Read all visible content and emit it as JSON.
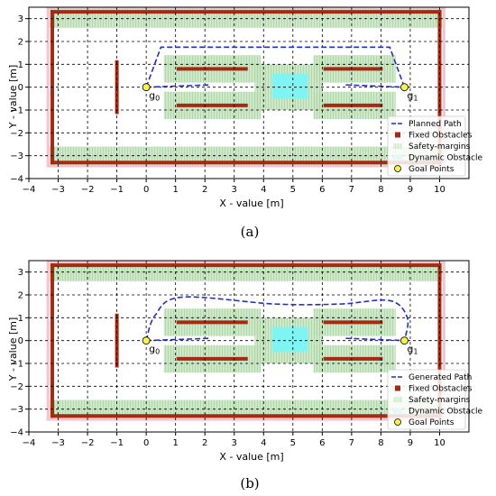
{
  "colors": {
    "margin": "#c9e6c4",
    "margin_stripe": "#a9d39f",
    "halo": "#f6c3cf",
    "obstacle": "#a52a13",
    "dynamic": "#7ff5f3",
    "path": "#1f2fd0",
    "goal": "#f5f542",
    "grid": "#000000"
  },
  "chart_data": [
    {
      "type": "scatter",
      "caption": "(a)",
      "xlabel": "X - value [m]",
      "ylabel": "Y - value [m]",
      "xlim": [
        -4,
        11
      ],
      "ylim": [
        -4,
        3.5
      ],
      "x_ticks": [
        -4,
        -3,
        -2,
        -1,
        0,
        1,
        2,
        3,
        4,
        5,
        6,
        7,
        8,
        9,
        10
      ],
      "y_ticks": [
        -4,
        -3,
        -2,
        -1,
        0,
        1,
        2,
        3
      ],
      "grid": true,
      "legend_position": "bottom-right",
      "legend": [
        "Planned Path",
        "Fixed Obstacles",
        "Safety-margins",
        "Dynamic Obstacle",
        "Goal Points"
      ],
      "path_style": "polyline",
      "path": [
        [
          0,
          0
        ],
        [
          0.5,
          1.75
        ],
        [
          8.3,
          1.75
        ],
        [
          8.8,
          0
        ]
      ],
      "path_inner": [
        [
          0,
          0
        ],
        [
          2.2,
          0.1
        ]
      ],
      "path_inner_right": [
        [
          6.8,
          0.1
        ],
        [
          8.8,
          0
        ]
      ],
      "goals": [
        {
          "label": "g",
          "sub": "0",
          "x": 0,
          "y": 0
        },
        {
          "label": "g",
          "sub": "1",
          "x": 8.8,
          "y": 0
        }
      ]
    },
    {
      "type": "scatter",
      "caption": "(b)",
      "xlabel": "X - value [m]",
      "ylabel": "Y - value [m]",
      "xlim": [
        -4,
        11
      ],
      "ylim": [
        -4,
        3.5
      ],
      "x_ticks": [
        -4,
        -3,
        -2,
        -1,
        0,
        1,
        2,
        3,
        4,
        5,
        6,
        7,
        8,
        9,
        10
      ],
      "y_ticks": [
        -4,
        -3,
        -2,
        -1,
        0,
        1,
        2,
        3
      ],
      "grid": true,
      "legend_position": "bottom-right",
      "legend": [
        "Generated Path",
        "Fixed Obstacles",
        "Safety-margins",
        "Dynamic Obstacle",
        "Goal Points"
      ],
      "path_style": "smooth",
      "path": [
        [
          0,
          0
        ],
        [
          0.3,
          1.1
        ],
        [
          1.2,
          1.9
        ],
        [
          4.4,
          1.6
        ],
        [
          6.6,
          1.6
        ],
        [
          8.3,
          1.75
        ],
        [
          8.9,
          1.0
        ],
        [
          8.8,
          0
        ]
      ],
      "path_inner": [
        [
          0,
          0
        ],
        [
          2.2,
          0.1
        ]
      ],
      "path_inner_right": [
        [
          6.8,
          0.1
        ],
        [
          8.8,
          0
        ]
      ],
      "goals": [
        {
          "label": "g",
          "sub": "0",
          "x": 0,
          "y": 0
        },
        {
          "label": "g",
          "sub": "1",
          "x": 8.8,
          "y": 0
        }
      ]
    }
  ],
  "environment": {
    "fixed_obstacles": [
      [
        [
          -3.2,
          3.3
        ],
        [
          10.0,
          3.3
        ]
      ],
      [
        [
          -3.2,
          -3.3
        ],
        [
          10.0,
          -3.3
        ]
      ],
      [
        [
          -3.2,
          -3.3
        ],
        [
          -3.2,
          3.3
        ]
      ],
      [
        [
          10.0,
          -3.3
        ],
        [
          10.0,
          3.3
        ]
      ],
      [
        [
          -1.0,
          -1.1
        ],
        [
          -1.0,
          1.1
        ]
      ],
      [
        [
          1.1,
          0.8
        ],
        [
          3.4,
          0.8
        ]
      ],
      [
        [
          1.1,
          -0.8
        ],
        [
          3.4,
          -0.8
        ]
      ],
      [
        [
          6.1,
          0.8
        ],
        [
          8.0,
          0.8
        ]
      ],
      [
        [
          6.1,
          -0.8
        ],
        [
          8.0,
          -0.8
        ]
      ]
    ],
    "safety_margins": [
      [
        -3.3,
        3.4,
        10.1,
        2.6
      ],
      [
        -3.3,
        -2.6,
        10.1,
        -3.4
      ],
      [
        -3.3,
        -3.4,
        -2.5,
        3.4
      ],
      [
        9.3,
        -3.4,
        10.1,
        3.4
      ],
      [
        -1.7,
        -2.0,
        -0.3,
        1.3
      ],
      [
        0.6,
        1.4,
        3.9,
        0.2
      ],
      [
        0.6,
        -0.2,
        3.9,
        -1.4
      ],
      [
        5.7,
        1.4,
        8.5,
        0.2
      ],
      [
        5.7,
        -0.2,
        8.5,
        -1.4
      ],
      [
        3.7,
        1.0,
        6.0,
        -1.0
      ]
    ],
    "dynamic_obstacle": [
      4.3,
      0.6,
      5.5,
      -0.5
    ]
  }
}
